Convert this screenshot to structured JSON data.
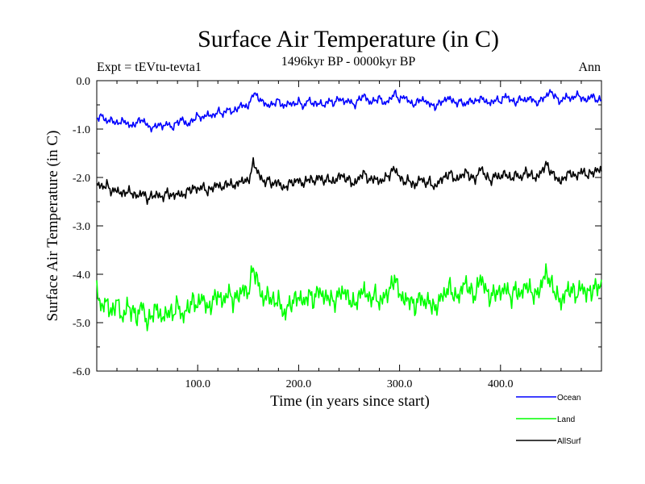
{
  "chart_data": {
    "type": "line",
    "title": "Surface Air Temperature (in C)",
    "subtitle": "1496kyr BP - 0000kyr BP",
    "left_annotation": "Expt = tEVtu-tevta1",
    "right_annotation": "Ann",
    "xlabel": "Time (in years since start)",
    "ylabel": "Surface Air Temperature (in C)",
    "xlim": [
      0,
      500
    ],
    "ylim": [
      -6.0,
      0.0
    ],
    "xticks": [
      100,
      200,
      300,
      400
    ],
    "xtick_labels": [
      "100.0",
      "200.0",
      "300.0",
      "400.0"
    ],
    "yticks": [
      0,
      -1,
      -2,
      -3,
      -4,
      -5,
      -6
    ],
    "ytick_labels": [
      "0.0",
      "-1.0",
      "-2.0",
      "-3.0",
      "-4.0",
      "-5.0",
      "-6.0"
    ],
    "legend_position": "bottom-right, outside plot",
    "series": [
      {
        "name": "Ocean",
        "color": "#0000ff",
        "step": 5,
        "values": [
          -0.78,
          -0.72,
          -0.85,
          -0.8,
          -0.9,
          -0.82,
          -0.88,
          -0.95,
          -0.85,
          -0.8,
          -0.92,
          -1.0,
          -0.9,
          -0.95,
          -0.88,
          -0.98,
          -0.85,
          -0.8,
          -0.92,
          -0.82,
          -0.72,
          -0.78,
          -0.68,
          -0.75,
          -0.62,
          -0.7,
          -0.58,
          -0.66,
          -0.55,
          -0.5,
          -0.55,
          -0.25,
          -0.35,
          -0.45,
          -0.52,
          -0.48,
          -0.4,
          -0.55,
          -0.45,
          -0.5,
          -0.42,
          -0.55,
          -0.38,
          -0.5,
          -0.45,
          -0.52,
          -0.4,
          -0.48,
          -0.35,
          -0.45,
          -0.4,
          -0.52,
          -0.38,
          -0.3,
          -0.45,
          -0.42,
          -0.35,
          -0.48,
          -0.4,
          -0.25,
          -0.4,
          -0.32,
          -0.45,
          -0.5,
          -0.38,
          -0.42,
          -0.48,
          -0.55,
          -0.45,
          -0.4,
          -0.35,
          -0.48,
          -0.42,
          -0.5,
          -0.4,
          -0.45,
          -0.35,
          -0.42,
          -0.48,
          -0.38,
          -0.44,
          -0.3,
          -0.4,
          -0.46,
          -0.36,
          -0.42,
          -0.34,
          -0.48,
          -0.4,
          -0.32,
          -0.22,
          -0.35,
          -0.45,
          -0.3,
          -0.4,
          -0.28,
          -0.35,
          -0.42,
          -0.3,
          -0.4
        ]
      },
      {
        "name": "Land",
        "color": "#00ff00",
        "step": 5,
        "values": [
          -4.35,
          -4.7,
          -4.55,
          -4.85,
          -4.5,
          -4.95,
          -4.65,
          -4.75,
          -4.9,
          -4.6,
          -5.05,
          -4.8,
          -4.7,
          -4.95,
          -4.75,
          -4.85,
          -4.6,
          -4.9,
          -4.7,
          -4.55,
          -4.65,
          -4.45,
          -4.75,
          -4.55,
          -4.4,
          -4.6,
          -4.35,
          -4.55,
          -4.45,
          -4.3,
          -4.4,
          -3.85,
          -4.2,
          -4.55,
          -4.4,
          -4.6,
          -4.5,
          -4.85,
          -4.65,
          -4.55,
          -4.45,
          -4.6,
          -4.4,
          -4.55,
          -4.3,
          -4.5,
          -4.45,
          -4.6,
          -4.4,
          -4.35,
          -4.5,
          -4.65,
          -4.45,
          -4.3,
          -4.55,
          -4.4,
          -4.6,
          -4.45,
          -4.35,
          -4.05,
          -4.4,
          -4.55,
          -4.5,
          -4.7,
          -4.45,
          -4.6,
          -4.55,
          -4.75,
          -4.5,
          -4.4,
          -4.25,
          -4.5,
          -4.4,
          -4.15,
          -4.35,
          -4.45,
          -4.05,
          -4.3,
          -4.5,
          -4.35,
          -4.4,
          -4.25,
          -4.5,
          -4.3,
          -4.45,
          -4.2,
          -4.35,
          -4.45,
          -4.25,
          -3.95,
          -4.2,
          -4.4,
          -4.6,
          -4.35,
          -4.3,
          -4.45,
          -4.25,
          -4.4,
          -4.35,
          -4.25
        ]
      },
      {
        "name": "AllSurf",
        "color": "#000000",
        "step": 5,
        "values": [
          -2.12,
          -2.2,
          -2.15,
          -2.3,
          -2.25,
          -2.35,
          -2.28,
          -2.32,
          -2.4,
          -2.3,
          -2.45,
          -2.38,
          -2.35,
          -2.42,
          -2.3,
          -2.4,
          -2.32,
          -2.38,
          -2.28,
          -2.22,
          -2.25,
          -2.18,
          -2.3,
          -2.2,
          -2.15,
          -2.22,
          -2.1,
          -2.18,
          -2.12,
          -2.05,
          -2.1,
          -1.7,
          -1.9,
          -2.1,
          -2.05,
          -2.15,
          -2.08,
          -2.25,
          -2.12,
          -2.1,
          -2.05,
          -2.15,
          -2.0,
          -2.1,
          -1.98,
          -2.08,
          -2.02,
          -2.12,
          -1.95,
          -2.0,
          -2.05,
          -2.15,
          -2.0,
          -1.9,
          -2.08,
          -2.0,
          -2.1,
          -2.02,
          -1.95,
          -1.8,
          -2.0,
          -2.1,
          -2.05,
          -2.2,
          -2.0,
          -2.12,
          -2.08,
          -2.22,
          -2.05,
          -2.0,
          -1.9,
          -2.05,
          -2.0,
          -1.88,
          -1.98,
          -2.05,
          -1.8,
          -1.95,
          -2.08,
          -1.95,
          -2.0,
          -1.9,
          -2.05,
          -1.92,
          -2.02,
          -1.88,
          -1.95,
          -2.02,
          -1.9,
          -1.72,
          -1.88,
          -2.0,
          -2.1,
          -1.95,
          -1.9,
          -2.0,
          -1.85,
          -1.95,
          -1.92,
          -1.85
        ]
      }
    ]
  }
}
